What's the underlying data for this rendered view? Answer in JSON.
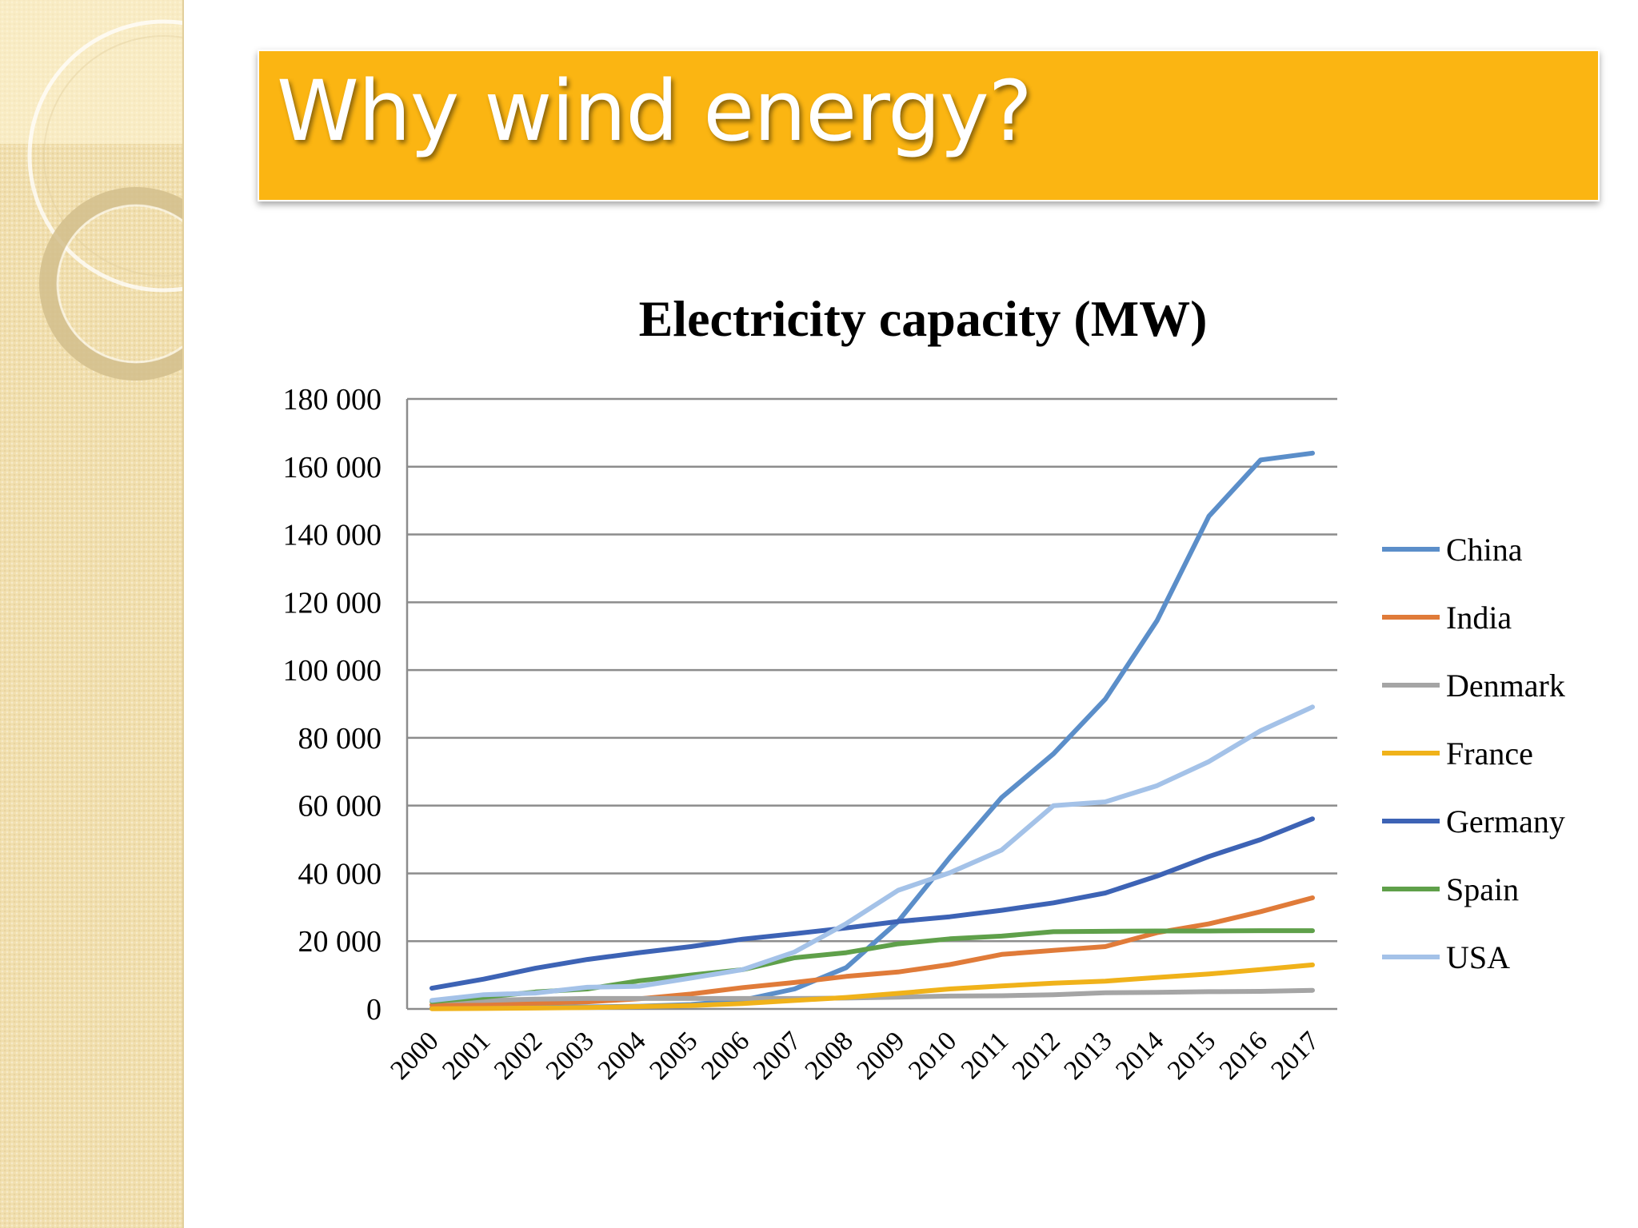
{
  "slide": {
    "title": "Why wind energy?"
  },
  "colors": {
    "title_bar": "#fbb512",
    "sidebar": "#f1dfae"
  },
  "chart_data": {
    "type": "line",
    "title": "Electricity capacity (MW)",
    "xlabel": "",
    "ylabel": "",
    "ylim": [
      0,
      180000
    ],
    "yticks": [
      0,
      20000,
      40000,
      60000,
      80000,
      100000,
      120000,
      140000,
      160000,
      180000
    ],
    "ytick_labels": [
      "0",
      "20 000",
      "40 000",
      "60 000",
      "80 000",
      "100 000",
      "120 000",
      "140 000",
      "160 000",
      "180 000"
    ],
    "grid": true,
    "legend": "right",
    "x": [
      "2000",
      "2001",
      "2002",
      "2003",
      "2004",
      "2005",
      "2006",
      "2007",
      "2008",
      "2009",
      "2010",
      "2011",
      "2012",
      "2013",
      "2014",
      "2015",
      "2016",
      "2017"
    ],
    "series": [
      {
        "name": "China",
        "color": "#5b8ec9",
        "values": [
          300,
          400,
          500,
          600,
          800,
          1300,
          2600,
          5900,
          12200,
          25800,
          44700,
          62400,
          75300,
          91400,
          114600,
          145400,
          162000,
          164000
        ]
      },
      {
        "name": "India",
        "color": "#e07b39",
        "values": [
          1200,
          1500,
          1700,
          2100,
          3000,
          4400,
          6300,
          7800,
          9600,
          10900,
          13100,
          16100,
          17300,
          18400,
          22500,
          25100,
          28700,
          32800
        ]
      },
      {
        "name": "Denmark",
        "color": "#a5a5a5",
        "values": [
          2400,
          2500,
          2900,
          3100,
          3100,
          3100,
          3100,
          3100,
          3200,
          3500,
          3800,
          3900,
          4200,
          4800,
          4900,
          5100,
          5200,
          5500
        ]
      },
      {
        "name": "France",
        "color": "#f0b21a",
        "values": [
          70,
          150,
          250,
          400,
          700,
          1000,
          1600,
          2500,
          3400,
          4600,
          5900,
          6800,
          7600,
          8200,
          9300,
          10300,
          11600,
          13000
        ]
      },
      {
        "name": "Germany",
        "color": "#3d63b5",
        "values": [
          6100,
          8800,
          12000,
          14600,
          16600,
          18400,
          20600,
          22200,
          23900,
          25800,
          27200,
          29100,
          31300,
          34200,
          39200,
          45000,
          50000,
          56100
        ]
      },
      {
        "name": "Spain",
        "color": "#5fa04a",
        "values": [
          2200,
          3500,
          5000,
          5900,
          8300,
          10000,
          11600,
          15100,
          16600,
          19200,
          20700,
          21500,
          22800,
          22900,
          23000,
          23000,
          23100,
          23100
        ]
      },
      {
        "name": "USA",
        "color": "#a4c2e8",
        "values": [
          2500,
          4200,
          4700,
          6400,
          6700,
          9100,
          11600,
          16800,
          25200,
          35000,
          40200,
          46900,
          60000,
          61100,
          65900,
          73000,
          82100,
          89100
        ]
      }
    ]
  }
}
